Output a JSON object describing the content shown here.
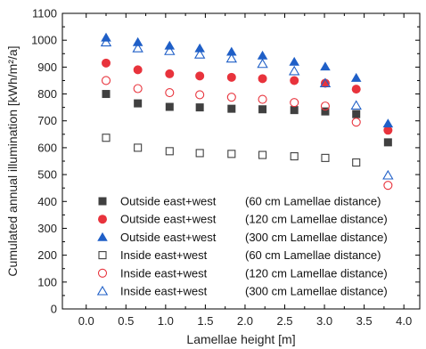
{
  "chart_data": {
    "type": "scatter",
    "xlabel": "Lamellae height [m]",
    "ylabel": "Cumulated annual illumination [kWh/m²/a]",
    "xlim": [
      -0.3,
      4.2
    ],
    "ylim": [
      0,
      1100
    ],
    "xticks": [
      "0.0",
      "0.5",
      "1.0",
      "1.5",
      "2.0",
      "2.5",
      "3.0",
      "3.5",
      "4.0"
    ],
    "yticks": [
      "0",
      "100",
      "200",
      "300",
      "400",
      "500",
      "600",
      "700",
      "800",
      "900",
      "1000",
      "1100"
    ],
    "grid": false,
    "legend_position": "bottom-right",
    "x": [
      0.25,
      0.65,
      1.05,
      1.43,
      1.83,
      2.22,
      2.62,
      3.01,
      3.4,
      3.8
    ],
    "series": [
      {
        "name": "Outside east+west",
        "note": "(60 cm Lamellae distance)",
        "marker": "square",
        "filled": true,
        "color": "#404040",
        "values": [
          800,
          765,
          752,
          750,
          745,
          743,
          740,
          735,
          725,
          620
        ]
      },
      {
        "name": "Outside east+west",
        "note": "(120 cm Lamellae distance)",
        "marker": "circle",
        "filled": true,
        "color": "#e8333c",
        "values": [
          915,
          890,
          875,
          867,
          862,
          857,
          850,
          840,
          818,
          665
        ]
      },
      {
        "name": "Outside east+west",
        "note": "(300 cm Lamellae distance)",
        "marker": "triangle",
        "filled": true,
        "color": "#1f5fc7",
        "values": [
          1010,
          993,
          980,
          970,
          957,
          943,
          920,
          902,
          860,
          690
        ]
      },
      {
        "name": "Inside east+west",
        "note": "(60 cm Lamellae distance)",
        "marker": "square",
        "filled": false,
        "color": "#404040",
        "values": [
          637,
          600,
          587,
          580,
          577,
          573,
          568,
          562,
          545,
          null
        ]
      },
      {
        "name": "Inside east+west",
        "note": "(120 cm Lamellae distance)",
        "marker": "circle",
        "filled": false,
        "color": "#e8333c",
        "values": [
          850,
          820,
          805,
          797,
          788,
          780,
          768,
          755,
          695,
          460
        ]
      },
      {
        "name": "Inside east+west",
        "note": "(300 cm Lamellae distance)",
        "marker": "triangle",
        "filled": false,
        "color": "#1f5fc7",
        "values": [
          992,
          970,
          960,
          947,
          932,
          912,
          885,
          840,
          757,
          497
        ]
      }
    ]
  }
}
